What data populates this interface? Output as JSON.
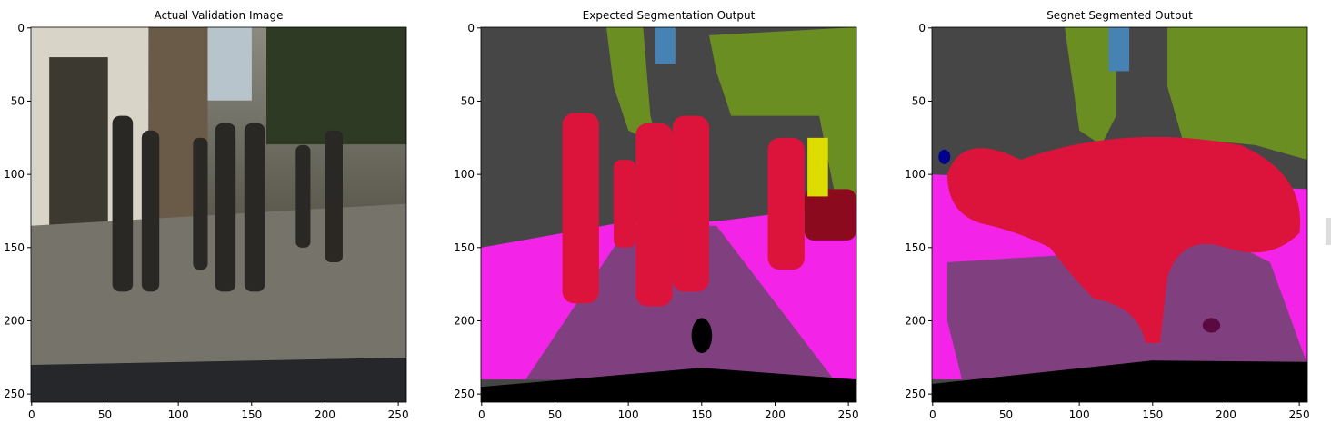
{
  "chart_data": [
    {
      "type": "image",
      "title": "Actual Validation Image",
      "xlim": [
        -0.5,
        255.5
      ],
      "ylim": [
        255.5,
        -0.5
      ],
      "xticks": [
        0,
        50,
        100,
        150,
        200,
        250
      ],
      "yticks": [
        0,
        50,
        100,
        150,
        200,
        250
      ]
    },
    {
      "type": "image",
      "title": "Expected Segmentation Output",
      "xlim": [
        -0.5,
        255.5
      ],
      "ylim": [
        255.5,
        -0.5
      ],
      "xticks": [
        0,
        50,
        100,
        150,
        200,
        250
      ],
      "yticks": [
        0,
        50,
        100,
        150,
        200,
        250
      ]
    },
    {
      "type": "image",
      "title": "Segnet Segmented Output",
      "xlim": [
        -0.5,
        255.5
      ],
      "ylim": [
        255.5,
        -0.5
      ],
      "xticks": [
        0,
        50,
        100,
        150,
        200,
        250
      ],
      "yticks": [
        0,
        50,
        100,
        150,
        200,
        250
      ]
    }
  ]
}
